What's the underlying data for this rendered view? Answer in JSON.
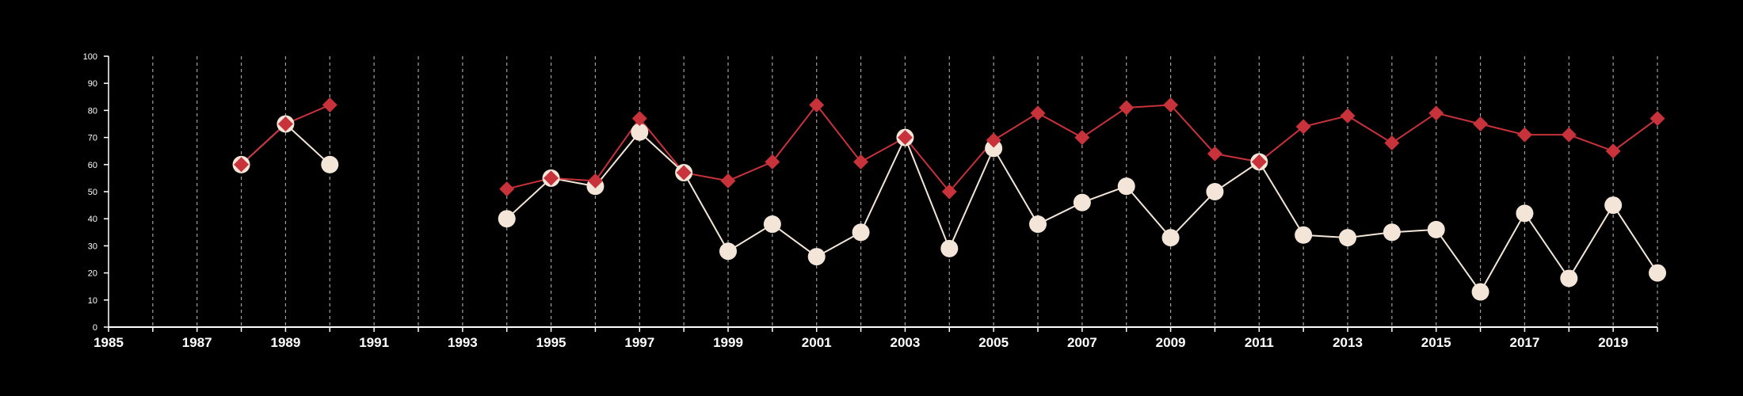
{
  "colors": {
    "background": "#000000",
    "axis": "#ffffff",
    "grid": "#a0a0a0",
    "series_white": "#f3e6d8",
    "series_red": "#c8323a"
  },
  "chart_data": {
    "type": "line",
    "title": "",
    "xlabel": "",
    "ylabel": "",
    "xlim": [
      1985,
      2020
    ],
    "ylim": [
      0,
      100
    ],
    "x_ticks": [
      1985,
      1987,
      1989,
      1991,
      1993,
      1995,
      1997,
      1999,
      2001,
      2003,
      2005,
      2007,
      2009,
      2011,
      2013,
      2015,
      2017,
      2019
    ],
    "y_ticks": [
      0,
      10,
      20,
      30,
      40,
      50,
      60,
      70,
      80,
      90,
      100
    ],
    "grid": "vertical dashed lines at every year",
    "legend": "none",
    "series": [
      {
        "marker": "circle",
        "color": "#f3e6d8",
        "points": [
          [
            1988,
            60
          ],
          [
            1989,
            75
          ],
          [
            1990,
            60
          ],
          [
            1994,
            40
          ],
          [
            1995,
            55
          ],
          [
            1996,
            52
          ],
          [
            1997,
            72
          ],
          [
            1998,
            57
          ],
          [
            1999,
            28
          ],
          [
            2000,
            38
          ],
          [
            2001,
            26
          ],
          [
            2002,
            35
          ],
          [
            2003,
            70
          ],
          [
            2004,
            29
          ],
          [
            2005,
            66
          ],
          [
            2006,
            38
          ],
          [
            2007,
            46
          ],
          [
            2008,
            52
          ],
          [
            2009,
            33
          ],
          [
            2010,
            50
          ],
          [
            2011,
            61
          ],
          [
            2012,
            34
          ],
          [
            2013,
            33
          ],
          [
            2014,
            35
          ],
          [
            2015,
            36
          ],
          [
            2016,
            13
          ],
          [
            2017,
            42
          ],
          [
            2018,
            18
          ],
          [
            2019,
            45
          ],
          [
            2020,
            20
          ]
        ]
      },
      {
        "marker": "diamond",
        "color": "#c8323a",
        "points": [
          [
            1988,
            60
          ],
          [
            1989,
            75
          ],
          [
            1990,
            82
          ],
          [
            1994,
            51
          ],
          [
            1995,
            55
          ],
          [
            1996,
            54
          ],
          [
            1997,
            77
          ],
          [
            1998,
            57
          ],
          [
            1999,
            54
          ],
          [
            2000,
            61
          ],
          [
            2001,
            82
          ],
          [
            2002,
            61
          ],
          [
            2003,
            70
          ],
          [
            2004,
            50
          ],
          [
            2005,
            69
          ],
          [
            2006,
            79
          ],
          [
            2007,
            70
          ],
          [
            2008,
            81
          ],
          [
            2009,
            82
          ],
          [
            2010,
            64
          ],
          [
            2011,
            61
          ],
          [
            2012,
            74
          ],
          [
            2013,
            78
          ],
          [
            2014,
            68
          ],
          [
            2015,
            79
          ],
          [
            2016,
            75
          ],
          [
            2017,
            71
          ],
          [
            2018,
            71
          ],
          [
            2019,
            65
          ],
          [
            2020,
            77
          ]
        ]
      }
    ]
  }
}
